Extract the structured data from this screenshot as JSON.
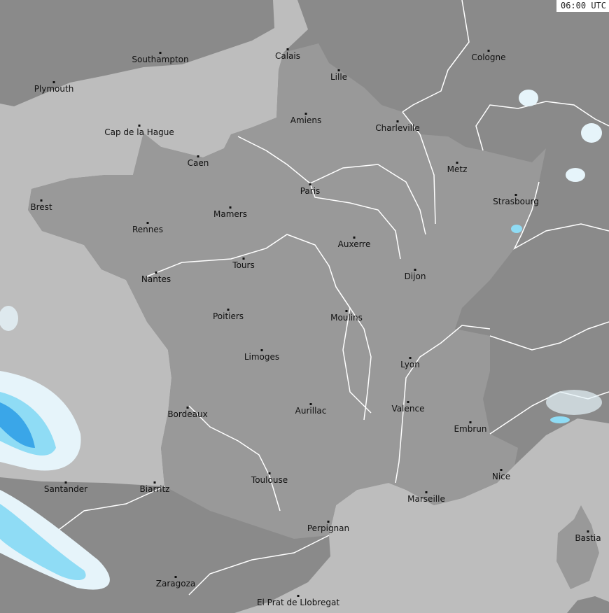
{
  "timestamp": "06:00 UTC",
  "colors": {
    "sea": "#bdbdbd",
    "france": "#999999",
    "other_land": "#8a8a8a",
    "borders_rivers": "#ffffff",
    "precip_light": "#e6f4fa",
    "precip_mid": "#8fdcf5",
    "precip_heavy": "#3aa6e8"
  },
  "cities": [
    {
      "name": "Southampton"
    },
    {
      "name": "Plymouth"
    },
    {
      "name": "Calais"
    },
    {
      "name": "Lille"
    },
    {
      "name": "Cologne"
    },
    {
      "name": "Amiens"
    },
    {
      "name": "Charleville"
    },
    {
      "name": "Cap de la Hague"
    },
    {
      "name": "Caen"
    },
    {
      "name": "Metz"
    },
    {
      "name": "Paris"
    },
    {
      "name": "Brest"
    },
    {
      "name": "Strasbourg"
    },
    {
      "name": "Mamers"
    },
    {
      "name": "Rennes"
    },
    {
      "name": "Auxerre"
    },
    {
      "name": "Tours"
    },
    {
      "name": "Nantes"
    },
    {
      "name": "Dijon"
    },
    {
      "name": "Poitiers"
    },
    {
      "name": "Moulins"
    },
    {
      "name": "Limoges"
    },
    {
      "name": "Lyon"
    },
    {
      "name": "Valence"
    },
    {
      "name": "Bordeaux"
    },
    {
      "name": "Aurillac"
    },
    {
      "name": "Embrun"
    },
    {
      "name": "Nice"
    },
    {
      "name": "Toulouse"
    },
    {
      "name": "Santander"
    },
    {
      "name": "Biarritz"
    },
    {
      "name": "Marseille"
    },
    {
      "name": "Perpignan"
    },
    {
      "name": "Bastia"
    },
    {
      "name": "Zaragoza"
    },
    {
      "name": "El Prat de Llobregat"
    }
  ]
}
